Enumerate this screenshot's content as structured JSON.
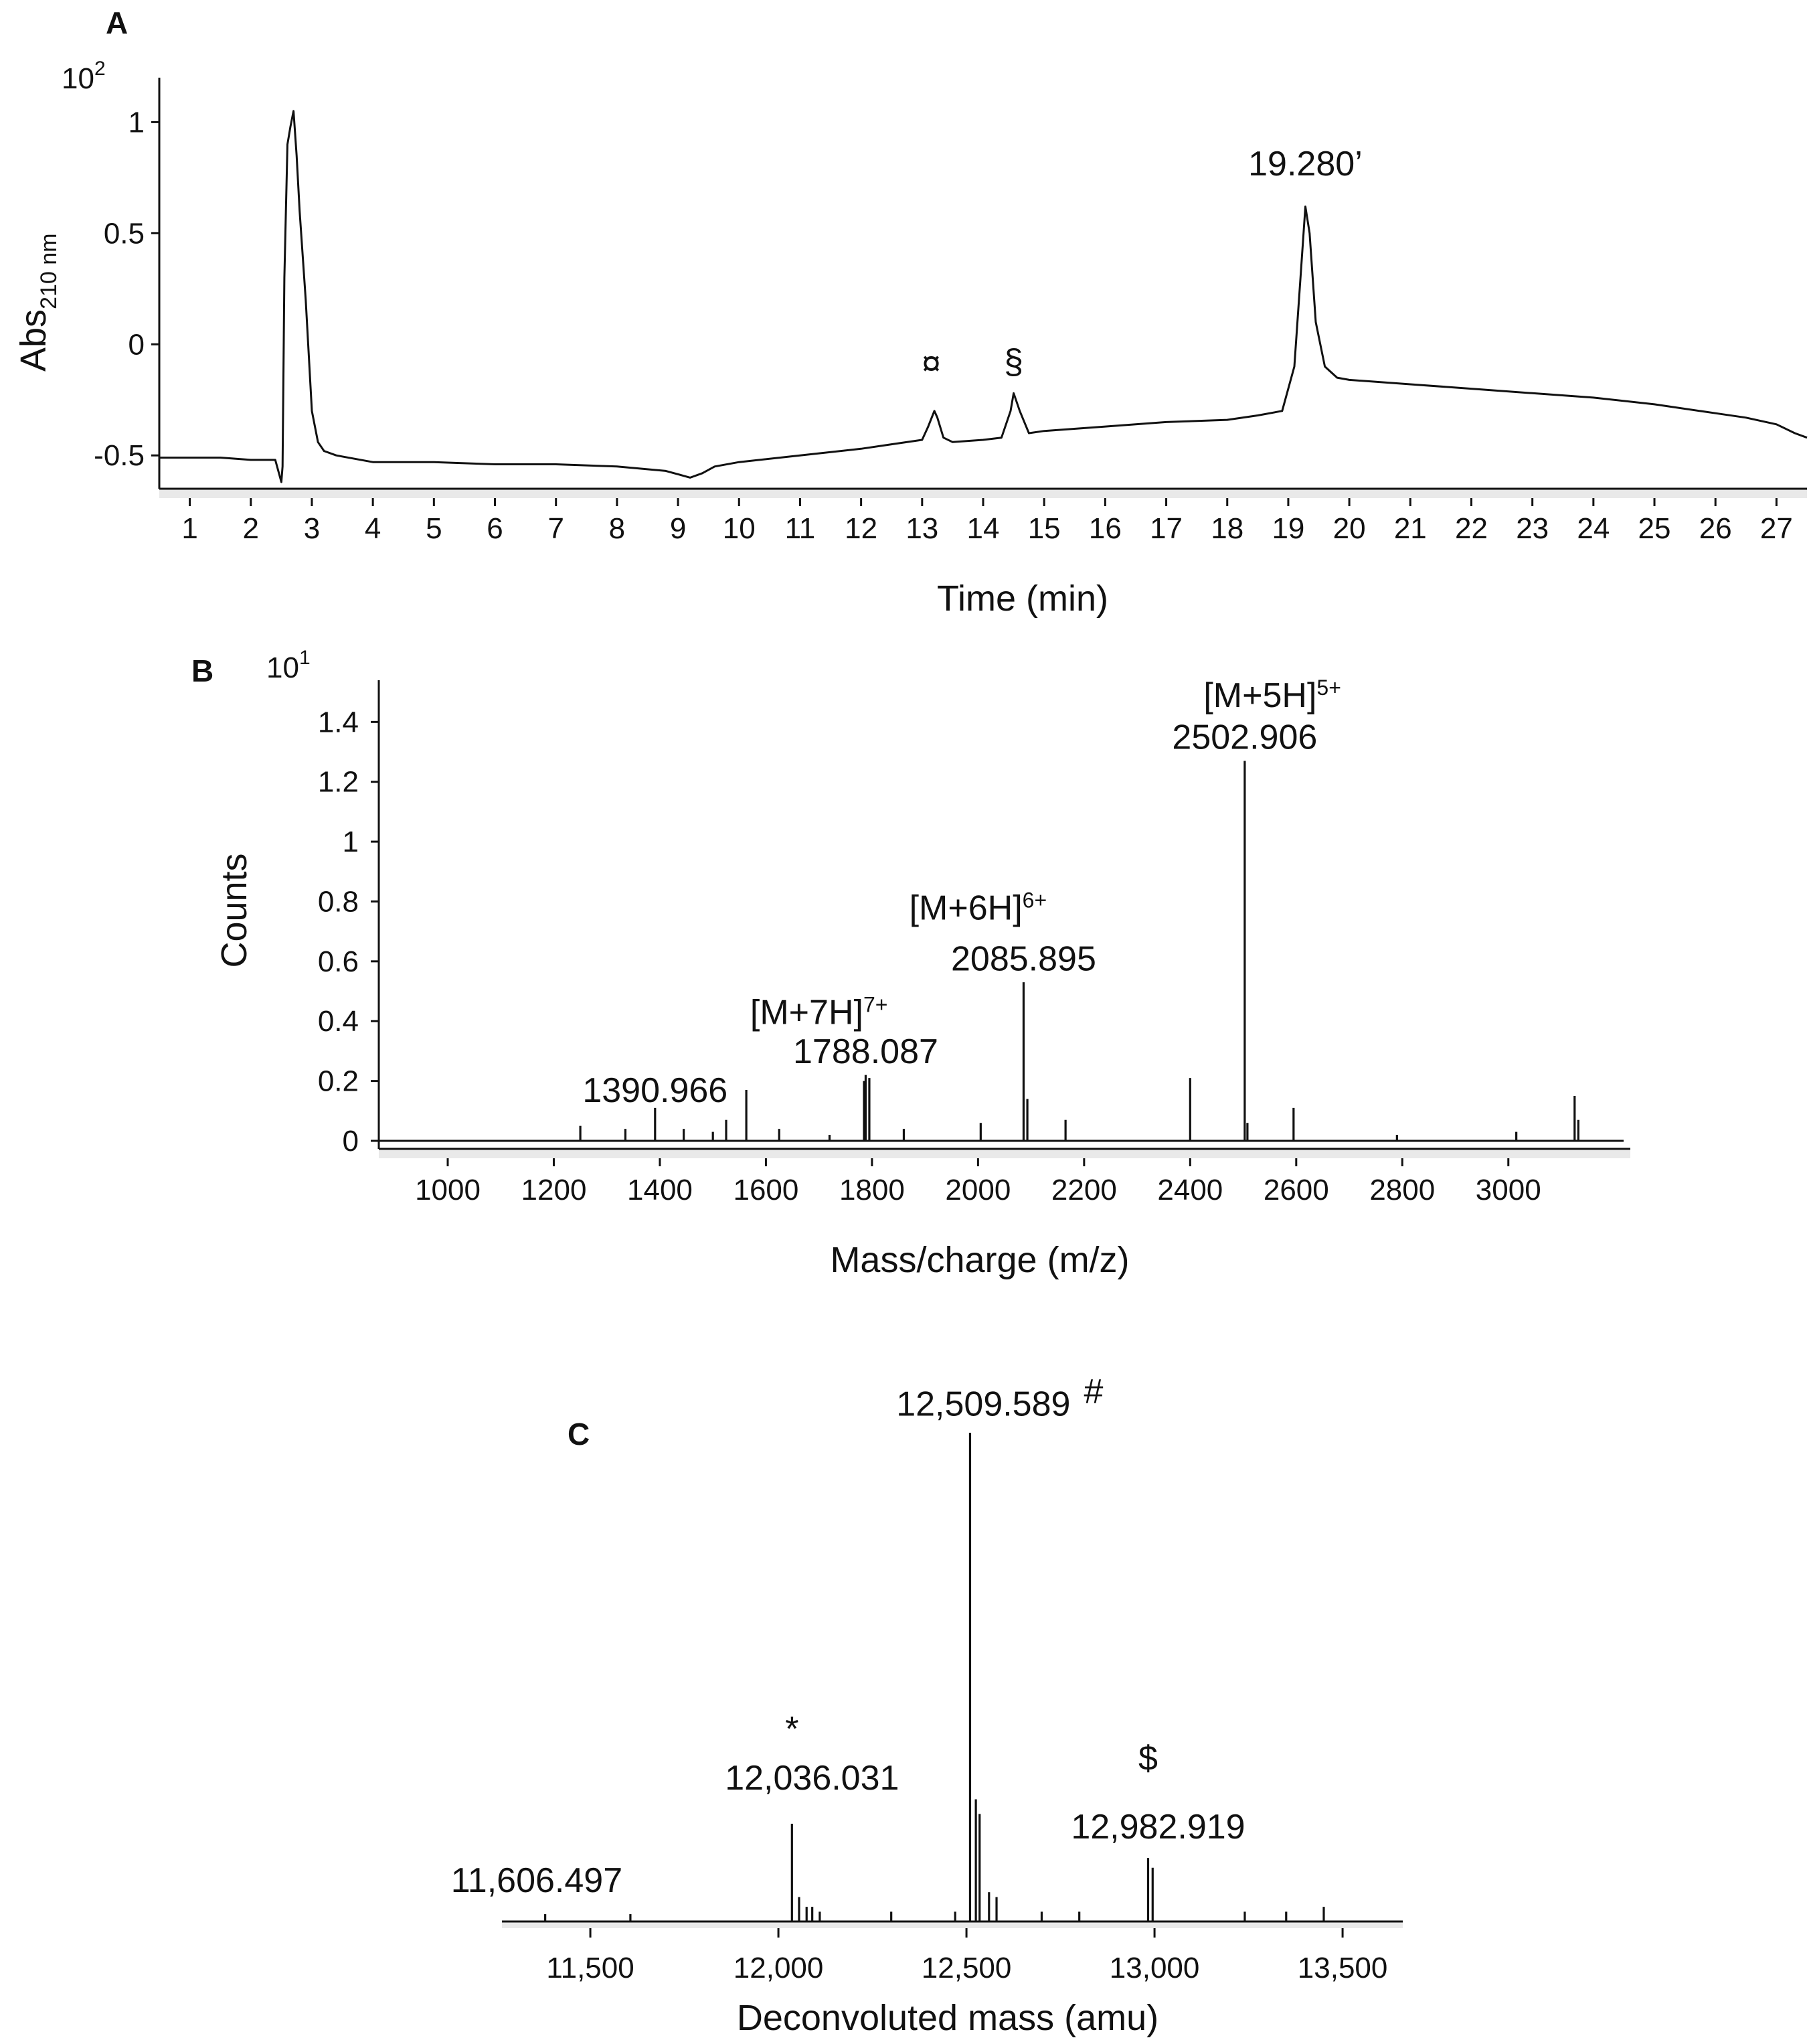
{
  "figure": {
    "panels": [
      "A",
      "B",
      "C"
    ]
  },
  "chart_data": [
    {
      "panel": "A",
      "type": "line",
      "title": "",
      "xlabel": "Time (min)",
      "ylabel": "Abs",
      "ylabel_sub": "210 nm",
      "y_multiplier": "10",
      "y_multiplier_exp": "2",
      "xlim": [
        0.5,
        27.5
      ],
      "ylim": [
        -0.65,
        1.2
      ],
      "x_ticks": [
        1,
        2,
        3,
        4,
        5,
        6,
        7,
        8,
        9,
        10,
        11,
        12,
        13,
        14,
        15,
        16,
        17,
        18,
        19,
        20,
        21,
        22,
        23,
        24,
        25,
        26,
        27
      ],
      "y_ticks": [
        -0.5,
        0,
        0.5,
        1
      ],
      "y_tick_labels": [
        "-0.5",
        "0",
        "0.5",
        "1"
      ],
      "series": [
        {
          "name": "chromatogram",
          "x": [
            0.5,
            1.5,
            2.0,
            2.4,
            2.5,
            2.52,
            2.55,
            2.6,
            2.65,
            2.7,
            2.75,
            2.8,
            2.9,
            3.0,
            3.1,
            3.2,
            3.4,
            4.0,
            5.0,
            6.0,
            7.0,
            8.0,
            8.8,
            9.2,
            9.4,
            9.6,
            10.0,
            11.0,
            12.0,
            12.5,
            13.0,
            13.1,
            13.2,
            13.25,
            13.35,
            13.5,
            14.0,
            14.3,
            14.45,
            14.5,
            14.6,
            14.75,
            15.0,
            16.0,
            17.0,
            18.0,
            18.5,
            18.9,
            19.1,
            19.2,
            19.28,
            19.35,
            19.45,
            19.6,
            19.8,
            20.0,
            21.0,
            22.0,
            23.0,
            24.0,
            25.0,
            26.0,
            26.5,
            27.0,
            27.3,
            27.5
          ],
          "y": [
            -0.51,
            -0.51,
            -0.52,
            -0.52,
            -0.62,
            -0.55,
            0.3,
            0.9,
            0.98,
            1.05,
            0.85,
            0.6,
            0.2,
            -0.3,
            -0.44,
            -0.48,
            -0.5,
            -0.53,
            -0.53,
            -0.54,
            -0.54,
            -0.55,
            -0.57,
            -0.6,
            -0.58,
            -0.55,
            -0.53,
            -0.5,
            -0.47,
            -0.45,
            -0.43,
            -0.37,
            -0.3,
            -0.33,
            -0.42,
            -0.44,
            -0.43,
            -0.42,
            -0.3,
            -0.22,
            -0.3,
            -0.4,
            -0.39,
            -0.37,
            -0.35,
            -0.34,
            -0.32,
            -0.3,
            -0.1,
            0.3,
            0.62,
            0.5,
            0.1,
            -0.1,
            -0.15,
            -0.16,
            -0.18,
            -0.2,
            -0.22,
            -0.24,
            -0.27,
            -0.31,
            -0.33,
            -0.36,
            -0.4,
            -0.42
          ]
        }
      ],
      "annotations": [
        {
          "text": "¤",
          "x": 13.15,
          "y": -0.14
        },
        {
          "text": "§",
          "x": 14.5,
          "y": -0.13
        },
        {
          "text": "19.280’",
          "x": 19.28,
          "y": 0.76
        }
      ]
    },
    {
      "panel": "B",
      "type": "bar",
      "title": "",
      "xlabel": "Mass/charge (m/z)",
      "ylabel": "Counts",
      "y_multiplier": "10",
      "y_multiplier_exp": "1",
      "xlim": [
        870,
        3230
      ],
      "ylim": [
        0,
        1.45
      ],
      "x_ticks": [
        1000,
        1200,
        1400,
        1600,
        1800,
        2000,
        2200,
        2400,
        2600,
        2800,
        3000
      ],
      "y_ticks": [
        0,
        0.2,
        0.4,
        0.6,
        0.8,
        1,
        1.2,
        1.4
      ],
      "y_tick_labels": [
        "0",
        "0.2",
        "0.4",
        "0.6",
        "0.8",
        "1",
        "1.2",
        "1.4"
      ],
      "peaks_x": [
        1250,
        1335,
        1390.966,
        1445,
        1500,
        1525,
        1563,
        1625,
        1720,
        1785,
        1788.087,
        1795,
        1860,
        2005,
        2085.895,
        2093,
        2165,
        2400,
        2502.906,
        2508,
        2595,
        2790,
        3015,
        3125,
        3132
      ],
      "peaks_y": [
        0.05,
        0.04,
        0.11,
        0.04,
        0.03,
        0.07,
        0.17,
        0.04,
        0.02,
        0.2,
        0.22,
        0.21,
        0.04,
        0.06,
        0.53,
        0.14,
        0.07,
        0.21,
        1.27,
        0.06,
        0.11,
        0.02,
        0.03,
        0.15,
        0.07
      ],
      "annotations": [
        {
          "text": "1390.966",
          "x": 1390.966,
          "y": 0.13
        },
        {
          "text": "1788.087",
          "x": 1788.087,
          "y": 0.26
        },
        {
          "text": "[M+7H]",
          "sup": "7+",
          "x": 1700,
          "y": 0.39
        },
        {
          "text": "2085.895",
          "x": 2085.895,
          "y": 0.57
        },
        {
          "text": "[M+6H]",
          "sup": "6+",
          "x": 2000,
          "y": 0.74
        },
        {
          "text": "2502.906",
          "x": 2502.906,
          "y": 1.31
        },
        {
          "text": "[M+5H]",
          "sup": "5+",
          "x": 2555,
          "y": 1.45
        }
      ]
    },
    {
      "panel": "C",
      "type": "bar",
      "title": "",
      "xlabel": "Deconvoluted mass (amu)",
      "ylabel": "",
      "xlim": [
        11265,
        13660
      ],
      "ylim": [
        0,
        1
      ],
      "x_ticks": [
        11500,
        12000,
        12500,
        13000,
        13500
      ],
      "x_tick_labels": [
        "11,500",
        "12,000",
        "12,500",
        "13,000",
        "13,500"
      ],
      "peaks_x": [
        11380,
        11606.497,
        12036.031,
        12055,
        12075,
        12090,
        12110,
        12300,
        12470,
        12509.589,
        12525,
        12535,
        12560,
        12580,
        12700,
        12800,
        12982.919,
        12995,
        13240,
        13350,
        13450
      ],
      "peaks_y": [
        0.015,
        0.015,
        0.2,
        0.05,
        0.03,
        0.03,
        0.02,
        0.02,
        0.02,
        1.0,
        0.25,
        0.22,
        0.06,
        0.05,
        0.02,
        0.02,
        0.13,
        0.11,
        0.02,
        0.02,
        0.03
      ],
      "annotations": [
        {
          "text": "11,606.497",
          "x": 11606.497,
          "y": 0.06
        },
        {
          "text": "12,036.031",
          "x": 12036.031,
          "y": 0.27
        },
        {
          "text": "*",
          "x": 12036.031,
          "y": 0.37
        },
        {
          "text": "12,509.589",
          "x": 12509.589,
          "y": 1.035
        },
        {
          "text": "#",
          "x": 12509.589,
          "y": 1.06
        },
        {
          "text": "12,982.919",
          "x": 12982.919,
          "y": 0.17
        },
        {
          "text": "$",
          "x": 12982.919,
          "y": 0.31
        }
      ]
    }
  ]
}
